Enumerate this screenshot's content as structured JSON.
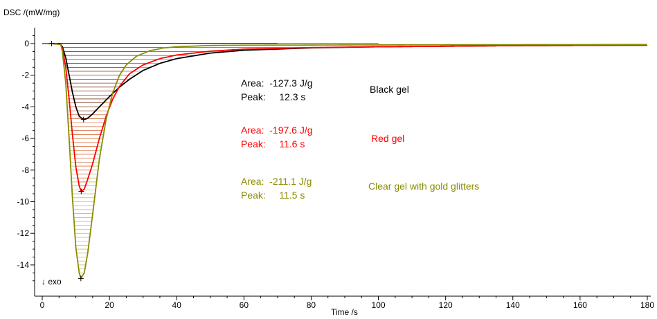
{
  "chart_data": {
    "type": "line",
    "title": "",
    "ylabel": "DSC /(mW/mg)",
    "xlabel": "Time /s",
    "xlim": [
      0,
      180
    ],
    "ylim": [
      -16,
      1
    ],
    "x_ticks": [
      0,
      20,
      40,
      60,
      80,
      100,
      120,
      140,
      160,
      180
    ],
    "y_ticks": [
      0,
      -2,
      -4,
      -6,
      -8,
      -10,
      -12,
      -14
    ],
    "grid": false,
    "exo_label": "↓ exo",
    "series": [
      {
        "name": "Black gel",
        "color": "#000000",
        "area_label": "Area:  -127.3 J/g",
        "peak_label": "Peak:     12.3 s",
        "peak": {
          "x": 12.3,
          "y": -4.8
        },
        "points": [
          [
            0,
            0
          ],
          [
            3,
            0
          ],
          [
            5.5,
            -0.05
          ],
          [
            6,
            -0.2
          ],
          [
            7,
            -0.9
          ],
          [
            8,
            -2.0
          ],
          [
            9,
            -3.1
          ],
          [
            10,
            -4.0
          ],
          [
            11,
            -4.6
          ],
          [
            12.3,
            -4.8
          ],
          [
            13.5,
            -4.72
          ],
          [
            15,
            -4.45
          ],
          [
            17,
            -4.0
          ],
          [
            20,
            -3.35
          ],
          [
            23,
            -2.75
          ],
          [
            26,
            -2.25
          ],
          [
            30,
            -1.7
          ],
          [
            35,
            -1.25
          ],
          [
            40,
            -0.95
          ],
          [
            50,
            -0.6
          ],
          [
            60,
            -0.42
          ],
          [
            80,
            -0.27
          ],
          [
            100,
            -0.2
          ],
          [
            140,
            -0.13
          ],
          [
            180,
            -0.1
          ]
        ]
      },
      {
        "name": "Red gel",
        "color": "#ff0000",
        "area_label": "Area:  -197.6 J/g",
        "peak_label": "Peak:     11.6 s",
        "peak": {
          "x": 11.6,
          "y": -9.35
        },
        "points": [
          [
            0,
            0
          ],
          [
            3,
            0
          ],
          [
            5.5,
            -0.05
          ],
          [
            6,
            -0.3
          ],
          [
            7,
            -1.5
          ],
          [
            8,
            -3.5
          ],
          [
            9,
            -5.8
          ],
          [
            10,
            -7.8
          ],
          [
            11,
            -9.0
          ],
          [
            11.6,
            -9.35
          ],
          [
            12.5,
            -9.2
          ],
          [
            13.5,
            -8.6
          ],
          [
            15,
            -7.6
          ],
          [
            17,
            -6.0
          ],
          [
            19,
            -4.6
          ],
          [
            21,
            -3.5
          ],
          [
            23,
            -2.7
          ],
          [
            26,
            -1.9
          ],
          [
            30,
            -1.35
          ],
          [
            35,
            -0.95
          ],
          [
            40,
            -0.72
          ],
          [
            50,
            -0.48
          ],
          [
            60,
            -0.35
          ],
          [
            80,
            -0.25
          ],
          [
            100,
            -0.2
          ],
          [
            140,
            -0.13
          ],
          [
            180,
            -0.1
          ]
        ]
      },
      {
        "name": "Clear gel with gold glitters",
        "color": "#8b8b00",
        "area_label": "Area:  -211.1 J/g",
        "peak_label": "Peak:     11.5 s",
        "peak": {
          "x": 11.5,
          "y": -14.85
        },
        "points": [
          [
            0,
            0
          ],
          [
            3,
            0
          ],
          [
            5.5,
            -0.05
          ],
          [
            6,
            -0.5
          ],
          [
            7,
            -2.5
          ],
          [
            8,
            -6.0
          ],
          [
            9,
            -9.8
          ],
          [
            10,
            -12.9
          ],
          [
            11,
            -14.5
          ],
          [
            11.5,
            -14.85
          ],
          [
            12.5,
            -14.5
          ],
          [
            13.5,
            -13.3
          ],
          [
            15,
            -10.8
          ],
          [
            17,
            -7.3
          ],
          [
            19,
            -4.8
          ],
          [
            21,
            -3.1
          ],
          [
            23,
            -2.0
          ],
          [
            25,
            -1.35
          ],
          [
            28,
            -0.8
          ],
          [
            32,
            -0.45
          ],
          [
            36,
            -0.28
          ],
          [
            40,
            -0.2
          ],
          [
            50,
            -0.12
          ],
          [
            60,
            -0.1
          ],
          [
            100,
            -0.08
          ],
          [
            180,
            -0.06
          ]
        ]
      }
    ]
  }
}
